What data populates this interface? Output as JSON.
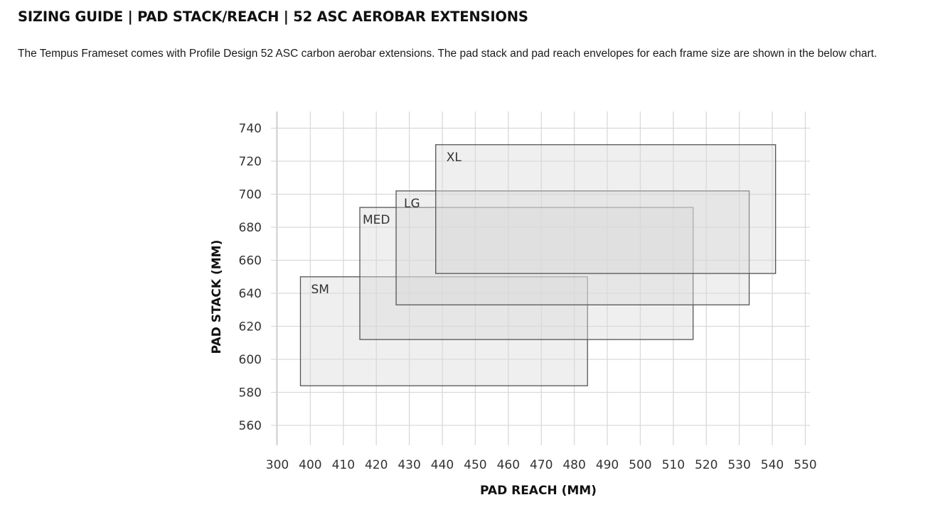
{
  "page": {
    "title": "SIZING GUIDE | PAD STACK/REACH | 52 ASC AEROBAR EXTENSIONS",
    "description": "The Tempus Frameset comes with Profile Design 52 ASC carbon aerobar extensions. The pad stack and pad reach envelopes for each frame size are shown in the below chart."
  },
  "chart_data": {
    "type": "range-rectangles",
    "xlabel": "PAD REACH (MM)",
    "ylabel": "PAD STACK (MM)",
    "x_ticks": [
      300,
      400,
      410,
      420,
      430,
      440,
      450,
      460,
      470,
      480,
      490,
      500,
      510,
      520,
      530,
      540,
      550
    ],
    "y_ticks": [
      560,
      580,
      600,
      620,
      640,
      660,
      680,
      700,
      720,
      740
    ],
    "grid": true,
    "legend": "none",
    "colors": {
      "fill": "#d8d8d8",
      "stroke": "#555555",
      "grid": "#d9d9d9"
    },
    "sizes": [
      {
        "label": "SM",
        "reach_min": 397,
        "reach_max": 484,
        "stack_min": 584,
        "stack_max": 650
      },
      {
        "label": "MED",
        "reach_min": 415,
        "reach_max": 516,
        "stack_min": 612,
        "stack_max": 692
      },
      {
        "label": "LG",
        "reach_min": 426,
        "reach_max": 533,
        "stack_min": 633,
        "stack_max": 702
      },
      {
        "label": "XL",
        "reach_min": 438,
        "reach_max": 541,
        "stack_min": 652,
        "stack_max": 730
      }
    ]
  }
}
